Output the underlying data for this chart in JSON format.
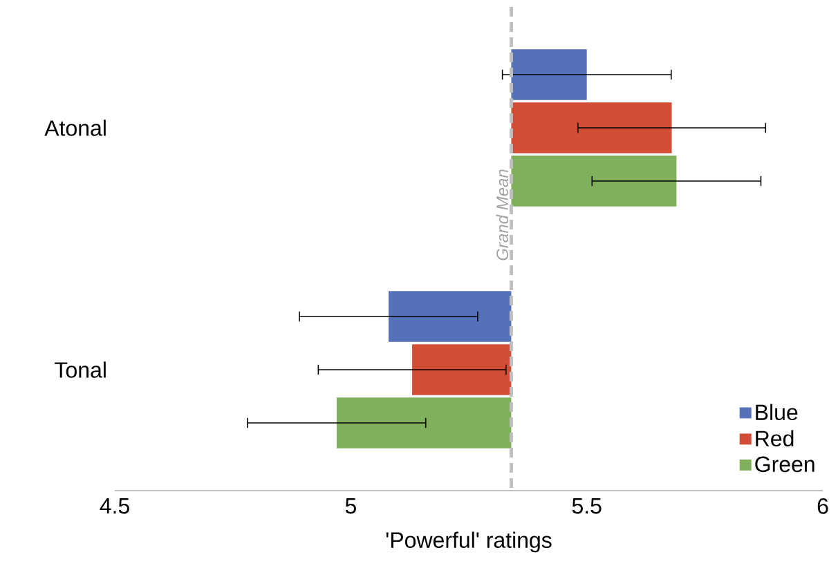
{
  "chart_data": {
    "type": "bar",
    "orientation": "horizontal",
    "xlabel": "'Powerful' ratings",
    "categories": [
      "Atonal",
      "Tonal"
    ],
    "series": [
      {
        "name": "Blue",
        "color": "#5471b9",
        "base": [
          5.34,
          5.34
        ],
        "values": [
          0.16,
          -0.26
        ],
        "errors": [
          0.18,
          0.19
        ]
      },
      {
        "name": "Red",
        "color": "#d34c35",
        "base": [
          5.34,
          5.34
        ],
        "values": [
          0.34,
          -0.21
        ],
        "errors": [
          0.2,
          0.2
        ]
      },
      {
        "name": "Green",
        "color": "#80b05b",
        "base": [
          5.34,
          5.34
        ],
        "values": [
          0.35,
          -0.37
        ],
        "errors": [
          0.18,
          0.19
        ]
      }
    ],
    "xlim": [
      4.5,
      6
    ],
    "xticks": [
      4.5,
      5,
      5.5,
      6
    ],
    "ref_lines": [
      {
        "axis": "x",
        "value": 5.34,
        "label": "Grand Mean",
        "color": "#bfbfbf",
        "line_style": "dashed"
      }
    ],
    "legend": "bottom right",
    "grid": false
  }
}
